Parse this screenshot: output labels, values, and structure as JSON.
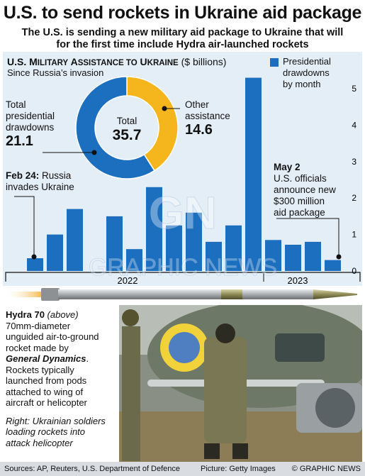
{
  "headline": "U.S. to send rockets in Ukraine aid package",
  "subhead_line1": "The U.S. is sending a new military aid package to Ukraine that will",
  "subhead_line2": "for the first time include Hydra air-launched rockets",
  "chart": {
    "title_prefix_U": "U.S. M",
    "title_sc1": "ILITARY",
    "title_A": " A",
    "title_sc2": "SSISTANCE TO",
    "title_U2": " U",
    "title_sc3": "KRAINE",
    "units": " ($ billions)",
    "subtitle": "Since Russia’s invasion",
    "legend_line1": "Presidential",
    "legend_line2": "drawdowns",
    "legend_line3": "by month",
    "colors": {
      "bar": "#1c6fbe",
      "donut_blue": "#1c6fbe",
      "donut_yellow": "#f5b51d",
      "panel": "#e4eef7"
    }
  },
  "chart_data": {
    "type": "bar",
    "title": "U.S. Military Assistance to Ukraine",
    "ylabel": "($ billions)",
    "series": [
      {
        "name": "Presidential drawdowns by month",
        "values": [
          0.35,
          1.0,
          1.7,
          0,
          1.5,
          0.6,
          2.3,
          1.25,
          1.6,
          0.8,
          1.25,
          5.3,
          0.85,
          0.72,
          0.8,
          0.3
        ]
      }
    ],
    "year_labels": [
      "2022",
      "2023"
    ],
    "yticks": [
      0,
      1,
      2,
      3,
      4,
      5
    ],
    "ylim": [
      0,
      5.6
    ],
    "grid": false,
    "legend_position": "top-right",
    "donut": {
      "total_label": "Total",
      "total": "35.7",
      "slices": [
        {
          "label_line1": "Total",
          "label_line2": "presidential",
          "label_line3": "drawdowns",
          "value": "21.1",
          "numeric": 21.1
        },
        {
          "label_line1": "Other",
          "label_line2": "assistance",
          "value": "14.6",
          "numeric": 14.6
        }
      ]
    }
  },
  "annotations": {
    "feb24_bold": "Feb 24:",
    "feb24_rest": " Russia",
    "feb24_line2": "invades Ukraine",
    "may2_bold": "May 2",
    "may2_line1": "U.S. officials",
    "may2_line2": "announce new",
    "may2_line3": "$300 million",
    "may2_line4": "aid package"
  },
  "photo_text": {
    "name": "Hydra 70",
    "name_note": " (above)",
    "line1": "70mm-diameter",
    "line2": "unguided air-to-ground",
    "line3": "rocket made by",
    "maker": "General Dynamics",
    "maker_end": ".",
    "line4": "Rockets typically",
    "line5": "launched from pods",
    "line6": "attached to wing of",
    "line7": "aircraft or helicopter",
    "caption1": "Right: Ukrainian soldiers",
    "caption2": "loading rockets into",
    "caption3": "attack helicopter"
  },
  "watermark": {
    "logo": "GN",
    "text": "GRAPHIC NEWS"
  },
  "footer": {
    "sources": "Sources: AP, Reuters, U.S. Department of Defence",
    "picture": "Picture: Getty Images",
    "credit": "© GRAPHIC NEWS"
  }
}
